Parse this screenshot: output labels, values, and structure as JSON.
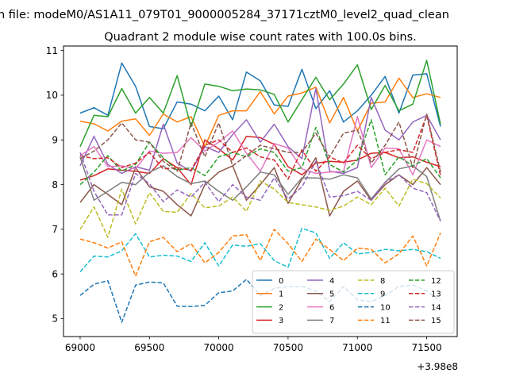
{
  "figure": {
    "suptitle": "n file: modeM0/AS1A11_079T01_9000005284_37171cztM0_level2_quad_clean",
    "title": "Quadrant 2 module wise count rates with 100.0s bins.",
    "offset_label": "+3.98e8"
  },
  "chart_data": {
    "type": "line",
    "title": "Quadrant 2 module wise count rates with 100.0s bins.",
    "xlabel": "",
    "ylabel": "",
    "x_offset": 398000000,
    "xlim": [
      68880,
      71720
    ],
    "ylim": [
      4.6,
      11.1
    ],
    "xticks": [
      69000,
      69500,
      70000,
      70500,
      71000,
      71500
    ],
    "yticks": [
      5,
      6,
      7,
      8,
      9,
      10,
      11
    ],
    "grid": false,
    "legend": {
      "placement": "lower-right",
      "columns": 4
    },
    "x": [
      69000,
      69100,
      69200,
      69300,
      69400,
      69500,
      69600,
      69700,
      69800,
      69900,
      70000,
      70100,
      70200,
      70300,
      70400,
      70500,
      70600,
      70700,
      70800,
      70900,
      71000,
      71100,
      71200,
      71300,
      71400,
      71500,
      71600
    ],
    "series": [
      {
        "name": "0",
        "color": "#1f77b4",
        "dash": "solid",
        "values": [
          9.6,
          9.72,
          9.55,
          10.72,
          10.2,
          9.3,
          9.25,
          9.85,
          9.8,
          9.65,
          9.98,
          9.45,
          10.52,
          10.32,
          9.78,
          9.75,
          10.58,
          9.7,
          10.1,
          9.4,
          9.65,
          10.0,
          10.42,
          9.6,
          10.45,
          10.48,
          9.3
        ]
      },
      {
        "name": "1",
        "color": "#ff7f0e",
        "dash": "solid",
        "values": [
          9.42,
          9.36,
          9.2,
          9.42,
          9.47,
          9.1,
          9.58,
          9.4,
          9.52,
          8.85,
          9.55,
          9.65,
          9.65,
          10.08,
          9.58,
          9.98,
          10.05,
          10.18,
          9.38,
          9.95,
          9.2,
          9.82,
          9.85,
          10.38,
          9.95,
          10.03,
          9.95
        ]
      },
      {
        "name": "2",
        "color": "#2ca02c",
        "dash": "solid",
        "values": [
          8.85,
          9.55,
          9.52,
          10.15,
          9.6,
          9.95,
          9.6,
          10.44,
          9.3,
          10.25,
          10.2,
          10.1,
          10.14,
          10.12,
          10.02,
          9.4,
          9.9,
          10.4,
          9.9,
          10.25,
          10.68,
          9.68,
          10.22,
          9.65,
          9.8,
          10.78,
          9.35
        ]
      },
      {
        "name": "3",
        "color": "#d62728",
        "dash": "solid",
        "values": [
          8.1,
          8.2,
          8.35,
          8.32,
          8.3,
          8.25,
          8.58,
          8.38,
          8.0,
          9.0,
          8.8,
          8.55,
          9.08,
          9.05,
          8.9,
          8.4,
          8.22,
          8.48,
          8.52,
          8.5,
          8.55,
          8.7,
          8.72,
          8.6,
          8.62,
          8.5,
          8.4
        ]
      },
      {
        "name": "4",
        "color": "#9467bd",
        "dash": "solid",
        "values": [
          8.42,
          9.08,
          8.45,
          8.25,
          8.4,
          8.32,
          9.35,
          8.48,
          8.3,
          8.85,
          8.72,
          9.12,
          9.45,
          8.95,
          9.35,
          8.85,
          8.58,
          10.15,
          8.3,
          8.25,
          8.38,
          9.95,
          9.22,
          9.0,
          9.4,
          9.55,
          9.0
        ]
      },
      {
        "name": "5",
        "color": "#8c564b",
        "dash": "solid",
        "values": [
          7.6,
          8.0,
          7.78,
          7.55,
          8.38,
          7.95,
          7.85,
          7.55,
          7.3,
          8.0,
          8.28,
          8.42,
          7.65,
          8.0,
          8.38,
          7.58,
          8.12,
          8.6,
          7.3,
          7.85,
          8.08,
          7.65,
          8.0,
          8.22,
          8.0,
          8.38,
          8.0
        ]
      },
      {
        "name": "6",
        "color": "#e377c2",
        "dash": "solid",
        "values": [
          8.65,
          8.85,
          8.4,
          8.42,
          8.35,
          8.75,
          8.7,
          8.72,
          9.05,
          8.75,
          8.95,
          9.2,
          8.7,
          8.3,
          8.92,
          8.82,
          8.35,
          8.25,
          8.28,
          8.3,
          9.52,
          8.38,
          8.82,
          8.8,
          8.22,
          9.0,
          8.85
        ]
      },
      {
        "name": "7",
        "color": "#7f7f7f",
        "dash": "solid",
        "values": [
          8.62,
          7.65,
          7.85,
          8.05,
          8.0,
          8.28,
          8.42,
          8.18,
          8.02,
          8.08,
          7.85,
          7.65,
          7.95,
          8.28,
          8.22,
          7.78,
          8.15,
          8.15,
          8.12,
          8.22,
          8.15,
          7.68,
          8.05,
          8.35,
          8.42,
          8.18,
          7.18
        ]
      },
      {
        "name": "8",
        "color": "#bcbd22",
        "dash": "dashed",
        "values": [
          7.0,
          7.5,
          6.82,
          7.9,
          7.12,
          7.82,
          7.4,
          7.38,
          7.8,
          7.48,
          7.52,
          7.72,
          7.4,
          8.08,
          7.9,
          7.6,
          7.55,
          7.5,
          7.42,
          7.52,
          7.72,
          7.55,
          7.92,
          7.52,
          8.12,
          8.02,
          7.7
        ]
      },
      {
        "name": "9",
        "color": "#17becf",
        "dash": "dashed",
        "values": [
          6.05,
          6.4,
          6.38,
          6.52,
          6.9,
          6.38,
          6.42,
          6.4,
          6.28,
          6.7,
          6.18,
          6.65,
          6.62,
          6.68,
          6.3,
          6.15,
          7.02,
          6.92,
          6.35,
          6.7,
          6.45,
          6.48,
          6.55,
          6.52,
          6.55,
          6.5,
          6.35
        ]
      },
      {
        "name": "10",
        "color": "#1f77b4",
        "dash": "dashed",
        "values": [
          5.52,
          5.77,
          5.85,
          4.92,
          5.75,
          5.82,
          5.8,
          5.28,
          5.27,
          5.3,
          5.58,
          5.62,
          5.88,
          5.52,
          5.68,
          5.72,
          5.72,
          5.62,
          5.38,
          5.72,
          5.42,
          5.38,
          5.52,
          5.72,
          5.75,
          5.62,
          5.4
        ]
      },
      {
        "name": "11",
        "color": "#ff7f0e",
        "dash": "dashed",
        "values": [
          6.78,
          6.7,
          6.58,
          6.72,
          5.95,
          6.72,
          6.82,
          6.5,
          6.68,
          6.25,
          6.48,
          6.85,
          6.88,
          6.3,
          7.0,
          6.68,
          6.28,
          6.78,
          6.55,
          6.3,
          6.58,
          6.55,
          6.25,
          6.45,
          6.85,
          6.18,
          6.92
        ]
      },
      {
        "name": "12",
        "color": "#2ca02c",
        "dash": "dashed",
        "values": [
          8.0,
          8.28,
          8.65,
          8.3,
          8.45,
          8.95,
          8.6,
          8.32,
          8.38,
          8.2,
          8.62,
          8.72,
          8.62,
          8.8,
          8.72,
          8.3,
          8.38,
          9.28,
          8.45,
          8.28,
          8.55,
          9.45,
          8.22,
          8.62,
          8.42,
          8.58,
          8.15
        ]
      },
      {
        "name": "13",
        "color": "#d62728",
        "dash": "dashed",
        "values": [
          8.65,
          8.58,
          8.6,
          8.38,
          8.48,
          8.72,
          8.35,
          8.38,
          8.32,
          8.88,
          9.0,
          8.72,
          8.82,
          8.62,
          8.55,
          8.12,
          8.78,
          8.3,
          8.62,
          8.48,
          8.88,
          8.58,
          8.72,
          8.78,
          8.72,
          9.55,
          8.2
        ]
      },
      {
        "name": "14",
        "color": "#9467bd",
        "dash": "dashed",
        "values": [
          8.72,
          7.85,
          7.32,
          7.32,
          8.25,
          8.02,
          7.62,
          7.88,
          7.72,
          8.05,
          7.62,
          8.0,
          7.72,
          7.65,
          8.15,
          7.68,
          7.95,
          8.52,
          7.72,
          7.75,
          7.85,
          7.65,
          8.05,
          8.22,
          7.92,
          7.82,
          7.18
        ]
      },
      {
        "name": "15",
        "color": "#8c564b",
        "dash": "dashed",
        "values": [
          8.58,
          8.75,
          9.0,
          9.38,
          9.0,
          8.95,
          8.52,
          8.3,
          9.38,
          8.62,
          9.38,
          8.42,
          8.65,
          8.88,
          8.8,
          8.72,
          8.72,
          9.15,
          8.62,
          9.15,
          9.22,
          8.48,
          8.88,
          9.4,
          8.38,
          9.58,
          8.28
        ]
      }
    ]
  }
}
